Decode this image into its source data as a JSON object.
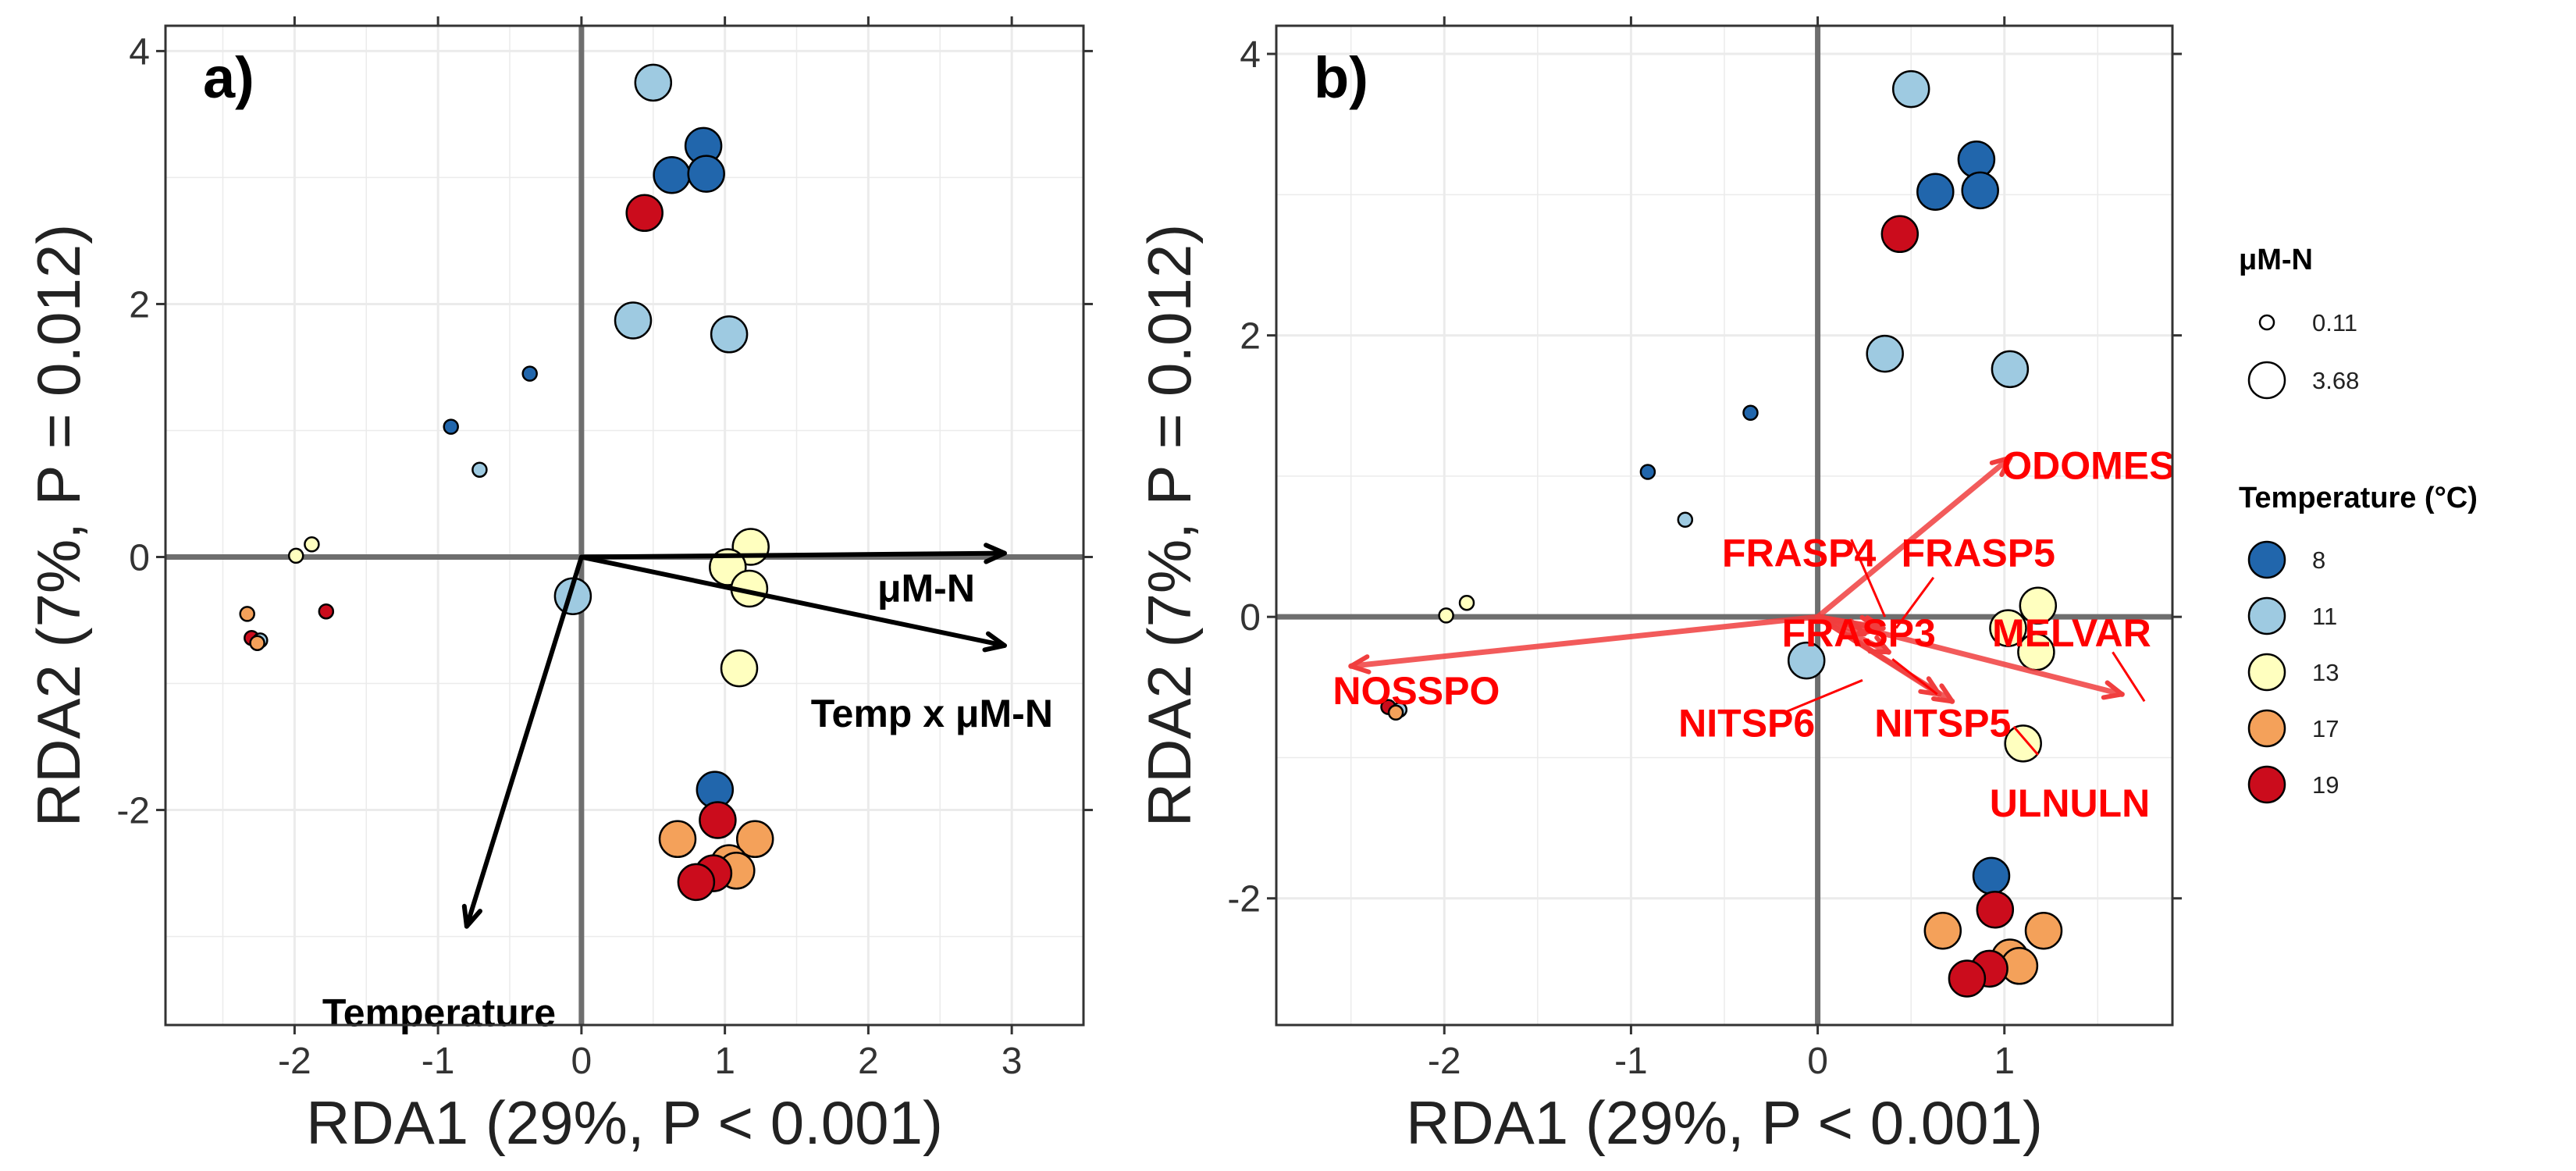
{
  "chart_data": [
    {
      "panel": "a)",
      "type": "scatter",
      "xlabel": "RDA1 (29%, P < 0.001)",
      "ylabel": "RDA2 (7%, P = 0.012)",
      "xlim": [
        -2.9,
        3.5
      ],
      "ylim": [
        -3.7,
        4.2
      ],
      "xticks": [
        -2,
        -1,
        0,
        1,
        2,
        3
      ],
      "yticks": [
        -2,
        0,
        2,
        4
      ],
      "grid": true,
      "points": [
        {
          "x": 0.5,
          "y": 3.75,
          "temp": 11,
          "n": 3.68
        },
        {
          "x": 0.85,
          "y": 3.25,
          "temp": 8,
          "n": 3.68
        },
        {
          "x": 0.63,
          "y": 3.02,
          "temp": 8,
          "n": 3.68
        },
        {
          "x": 0.87,
          "y": 3.03,
          "temp": 8,
          "n": 3.68
        },
        {
          "x": 0.44,
          "y": 2.72,
          "temp": 19,
          "n": 3.68
        },
        {
          "x": 0.36,
          "y": 1.87,
          "temp": 11,
          "n": 3.68
        },
        {
          "x": 1.03,
          "y": 1.76,
          "temp": 11,
          "n": 3.68
        },
        {
          "x": -0.36,
          "y": 1.45,
          "temp": 8,
          "n": 0.11
        },
        {
          "x": -0.91,
          "y": 1.03,
          "temp": 8,
          "n": 0.11
        },
        {
          "x": -0.71,
          "y": 0.69,
          "temp": 11,
          "n": 0.11
        },
        {
          "x": -1.88,
          "y": 0.1,
          "temp": 13,
          "n": 0.11
        },
        {
          "x": -1.99,
          "y": 0.01,
          "temp": 13,
          "n": 0.11
        },
        {
          "x": -2.33,
          "y": -0.45,
          "temp": 17,
          "n": 0.11
        },
        {
          "x": -1.78,
          "y": -0.43,
          "temp": 19,
          "n": 0.11
        },
        {
          "x": -2.3,
          "y": -0.64,
          "temp": 19,
          "n": 0.11
        },
        {
          "x": -2.24,
          "y": -0.66,
          "temp": 11,
          "n": 0.11
        },
        {
          "x": -2.26,
          "y": -0.68,
          "temp": 17,
          "n": 0.11
        },
        {
          "x": 1.18,
          "y": 0.08,
          "temp": 13,
          "n": 3.68
        },
        {
          "x": 1.02,
          "y": -0.08,
          "temp": 13,
          "n": 3.68
        },
        {
          "x": 1.17,
          "y": -0.25,
          "temp": 13,
          "n": 3.68
        },
        {
          "x": -0.06,
          "y": -0.31,
          "temp": 11,
          "n": 3.68
        },
        {
          "x": 1.1,
          "y": -0.88,
          "temp": 13,
          "n": 3.68
        },
        {
          "x": 0.93,
          "y": -1.84,
          "temp": 8,
          "n": 3.68
        },
        {
          "x": 0.95,
          "y": -2.08,
          "temp": 19,
          "n": 3.68
        },
        {
          "x": 0.67,
          "y": -2.23,
          "temp": 17,
          "n": 3.68
        },
        {
          "x": 1.21,
          "y": -2.23,
          "temp": 17,
          "n": 3.68
        },
        {
          "x": 1.03,
          "y": -2.42,
          "temp": 17,
          "n": 3.68
        },
        {
          "x": 1.08,
          "y": -2.48,
          "temp": 17,
          "n": 3.68
        },
        {
          "x": 0.92,
          "y": -2.5,
          "temp": 19,
          "n": 3.68
        },
        {
          "x": 0.8,
          "y": -2.57,
          "temp": 19,
          "n": 3.68
        }
      ],
      "vectors": [
        {
          "label": "μM-N",
          "x": 2.95,
          "y": 0.03
        },
        {
          "label": "Temp x μM-N",
          "x": 2.95,
          "y": -0.7
        },
        {
          "label": "Temperature",
          "x": -0.8,
          "y": -2.92
        }
      ]
    },
    {
      "panel": "b)",
      "type": "scatter",
      "xlabel": "RDA1 (29%, P < 0.001)",
      "ylabel": "RDA2 (7%, P = 0.012)",
      "xlim": [
        -2.9,
        1.9
      ],
      "ylim": [
        -2.9,
        4.2
      ],
      "xticks": [
        -2,
        -1,
        0,
        1
      ],
      "yticks": [
        -2,
        0,
        2,
        4
      ],
      "grid": true,
      "points": [
        {
          "x": 0.5,
          "y": 3.75,
          "temp": 11,
          "n": 3.68
        },
        {
          "x": 0.85,
          "y": 3.25,
          "temp": 8,
          "n": 3.68
        },
        {
          "x": 0.63,
          "y": 3.02,
          "temp": 8,
          "n": 3.68
        },
        {
          "x": 0.87,
          "y": 3.03,
          "temp": 8,
          "n": 3.68
        },
        {
          "x": 0.44,
          "y": 2.72,
          "temp": 19,
          "n": 3.68
        },
        {
          "x": 0.36,
          "y": 1.87,
          "temp": 11,
          "n": 3.68
        },
        {
          "x": 1.03,
          "y": 1.76,
          "temp": 11,
          "n": 3.68
        },
        {
          "x": -0.36,
          "y": 1.45,
          "temp": 8,
          "n": 0.11
        },
        {
          "x": -0.91,
          "y": 1.03,
          "temp": 8,
          "n": 0.11
        },
        {
          "x": -0.71,
          "y": 0.69,
          "temp": 11,
          "n": 0.11
        },
        {
          "x": -1.88,
          "y": 0.1,
          "temp": 13,
          "n": 0.11
        },
        {
          "x": -1.99,
          "y": 0.01,
          "temp": 13,
          "n": 0.11
        },
        {
          "x": -2.3,
          "y": -0.64,
          "temp": 19,
          "n": 0.11
        },
        {
          "x": -2.24,
          "y": -0.66,
          "temp": 11,
          "n": 0.11
        },
        {
          "x": -2.26,
          "y": -0.68,
          "temp": 17,
          "n": 0.11
        },
        {
          "x": 1.18,
          "y": 0.08,
          "temp": 13,
          "n": 3.68
        },
        {
          "x": 1.02,
          "y": -0.08,
          "temp": 13,
          "n": 3.68
        },
        {
          "x": 1.17,
          "y": -0.25,
          "temp": 13,
          "n": 3.68
        },
        {
          "x": -0.06,
          "y": -0.31,
          "temp": 11,
          "n": 3.68
        },
        {
          "x": 1.1,
          "y": -0.9,
          "temp": 13,
          "n": 3.68
        },
        {
          "x": 0.93,
          "y": -1.84,
          "temp": 8,
          "n": 3.68
        },
        {
          "x": 0.95,
          "y": -2.08,
          "temp": 19,
          "n": 3.68
        },
        {
          "x": 0.67,
          "y": -2.23,
          "temp": 17,
          "n": 3.68
        },
        {
          "x": 1.21,
          "y": -2.23,
          "temp": 17,
          "n": 3.68
        },
        {
          "x": 1.03,
          "y": -2.42,
          "temp": 17,
          "n": 3.68
        },
        {
          "x": 1.08,
          "y": -2.48,
          "temp": 17,
          "n": 3.68
        },
        {
          "x": 0.92,
          "y": -2.5,
          "temp": 19,
          "n": 3.68
        },
        {
          "x": 0.8,
          "y": -2.57,
          "temp": 19,
          "n": 3.68
        }
      ],
      "species_vectors": [
        {
          "label": "ODOMES",
          "x": 1.03,
          "y": 1.13
        },
        {
          "label": "FRASP4",
          "x": 0.35,
          "y": -0.08
        },
        {
          "label": "FRASP5",
          "x": 0.32,
          "y": -0.08
        },
        {
          "label": "FRASP3",
          "x": 0.25,
          "y": -0.12
        },
        {
          "label": "MELVAR",
          "x": 1.63,
          "y": -0.55
        },
        {
          "label": "NOSSPO",
          "x": -2.5,
          "y": -0.35
        },
        {
          "label": "NITSP6",
          "x": 0.38,
          "y": -0.25
        },
        {
          "label": "NITSP5",
          "x": 0.72,
          "y": -0.6
        },
        {
          "label": "ULNULN",
          "x": 0.65,
          "y": -0.55
        }
      ]
    }
  ],
  "legend": {
    "size_title": "μM-N",
    "size_items": [
      {
        "label": "0.11",
        "n": 0.11
      },
      {
        "label": "3.68",
        "n": 3.68
      }
    ],
    "color_title": "Temperature (°C)",
    "color_items": [
      {
        "label": "8",
        "temp": 8,
        "color": "#2166ac"
      },
      {
        "label": "11",
        "temp": 11,
        "color": "#9ecae1"
      },
      {
        "label": "13",
        "temp": 13,
        "color": "#ffffbf"
      },
      {
        "label": "17",
        "temp": 17,
        "color": "#f4a15a"
      },
      {
        "label": "19",
        "temp": 19,
        "color": "#cb0c1c"
      }
    ]
  },
  "colors": {
    "vector": "#000000",
    "species_vector": "#f03e3e",
    "species_label": "#ff0000",
    "zero_line": "#6e6e6e",
    "grid": "#ebebeb"
  }
}
